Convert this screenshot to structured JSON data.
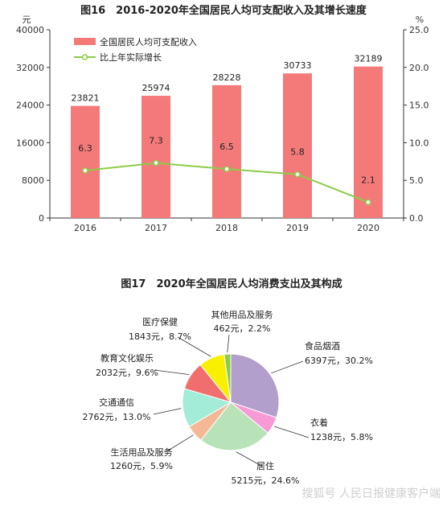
{
  "watermark": "搜狐号 人民日报健康客户端",
  "chart_data": [
    {
      "type": "bar",
      "title": "图16　2016-2020年全国居民人均可支配收入及其增长速度",
      "left_unit": "元",
      "right_unit": "%",
      "categories": [
        "2016",
        "2017",
        "2018",
        "2019",
        "2020"
      ],
      "y_ticks": [
        "0",
        "8000",
        "16000",
        "24000",
        "32000",
        "40000"
      ],
      "y2_ticks": [
        "0.0",
        "5.0",
        "10.0",
        "15.0",
        "20.0",
        "25.0"
      ],
      "ylim": [
        0,
        40000
      ],
      "y2lim": [
        0,
        25
      ],
      "legend_position": "top-left",
      "series": [
        {
          "name": "全国居民人均可支配收入",
          "type": "bar",
          "axis": "left",
          "color": "#f47a7a",
          "values": [
            23821,
            25974,
            28228,
            30733,
            32189
          ],
          "labels": [
            "23821",
            "25974",
            "28228",
            "30733",
            "32189"
          ]
        },
        {
          "name": "比上年实际增长",
          "type": "line",
          "axis": "right",
          "color": "#8ccc4a",
          "values": [
            6.3,
            7.3,
            6.5,
            5.8,
            2.1
          ],
          "labels": [
            "6.3",
            "7.3",
            "6.5",
            "5.8",
            "2.1"
          ]
        }
      ]
    },
    {
      "type": "pie",
      "title": "图17　2020年全国居民人均消费支出及其构成",
      "slices": [
        {
          "name": "食品烟酒",
          "value": 6397,
          "value_label": "6397元，30.2%",
          "percent": 30.2,
          "color": "#b39fcb"
        },
        {
          "name": "衣着",
          "value": 1238,
          "value_label": "1238元，5.8%",
          "percent": 5.8,
          "color": "#f79ad6"
        },
        {
          "name": "居住",
          "value": 5215,
          "value_label": "5215元，24.6%",
          "percent": 24.6,
          "color": "#b8e3b8"
        },
        {
          "name": "生活用品及服务",
          "value": 1260,
          "value_label": "1260元，5.9%",
          "percent": 5.9,
          "color": "#f5b894"
        },
        {
          "name": "交通通信",
          "value": 2762,
          "value_label": "2762元，13.0%",
          "percent": 13.0,
          "color": "#a3ecd8"
        },
        {
          "name": "教育文化娱乐",
          "value": 2032,
          "value_label": "2032元，9.6%",
          "percent": 9.6,
          "color": "#f06e6e"
        },
        {
          "name": "医疗保健",
          "value": 1843,
          "value_label": "1843元，8.7%",
          "percent": 8.7,
          "color": "#f8f000"
        },
        {
          "name": "其他用品及服务",
          "value": 462,
          "value_label": "462元，2.2%",
          "percent": 2.2,
          "color": "#8ccc4a"
        }
      ]
    }
  ]
}
